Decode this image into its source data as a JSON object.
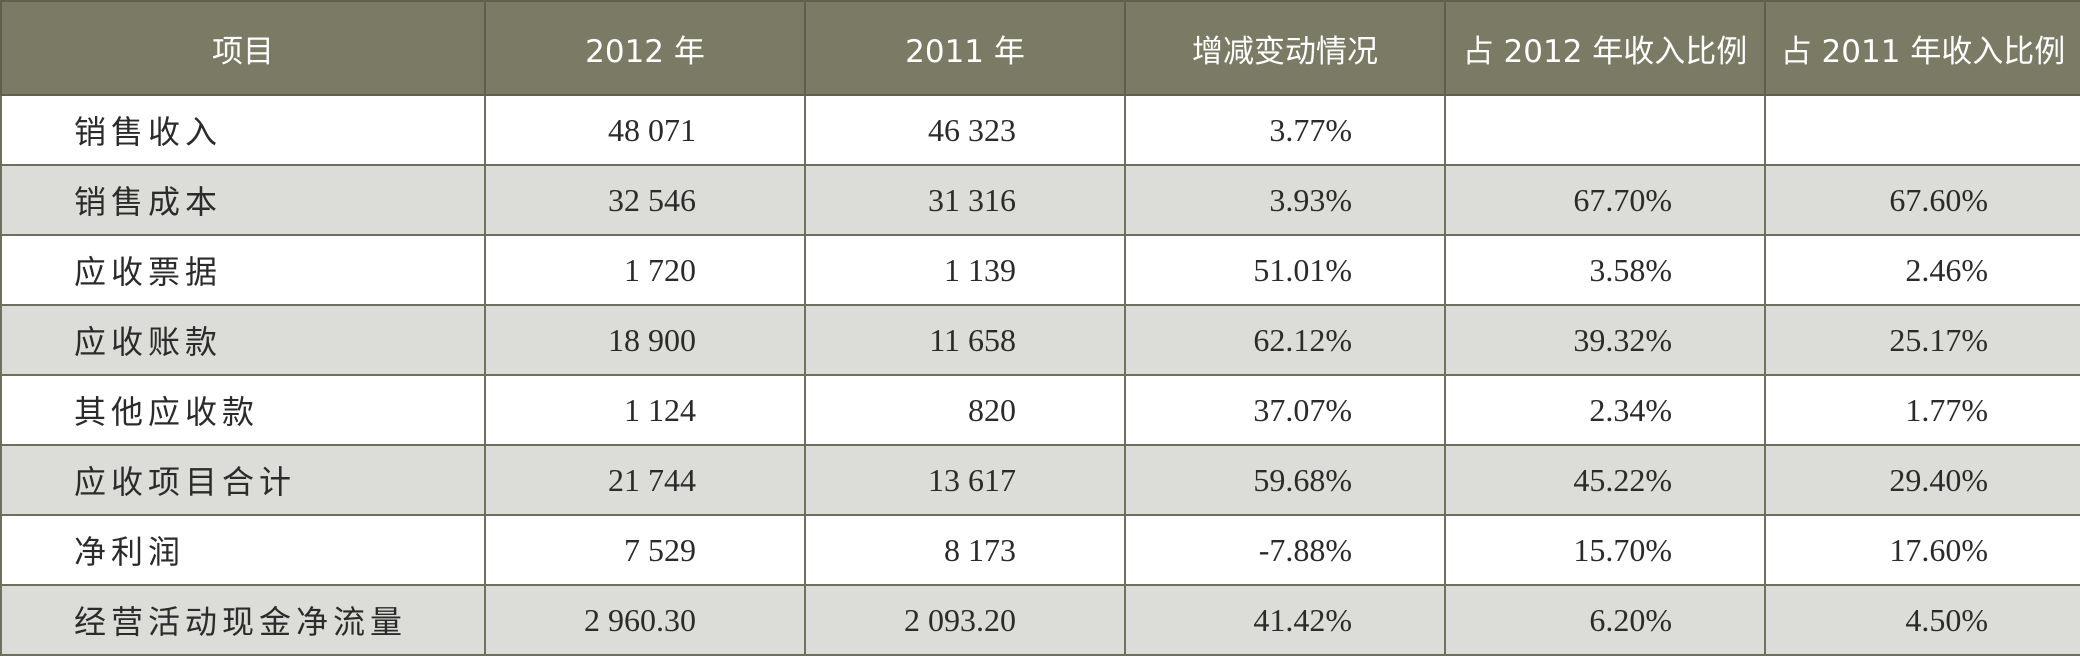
{
  "table": {
    "headers": [
      "项目",
      "2012 年",
      "2011 年",
      "增减变动情况",
      "占 2012 年收入比例",
      "占 2011 年收入比例"
    ],
    "rows": [
      {
        "item": "销售收入",
        "v2012": "48 071",
        "v2011": "46 323",
        "change": "3.77%",
        "ratio2012": "",
        "ratio2011": ""
      },
      {
        "item": "销售成本",
        "v2012": "32 546",
        "v2011": "31 316",
        "change": "3.93%",
        "ratio2012": "67.70%",
        "ratio2011": "67.60%"
      },
      {
        "item": "应收票据",
        "v2012": "1 720",
        "v2011": "1 139",
        "change": "51.01%",
        "ratio2012": "3.58%",
        "ratio2011": "2.46%"
      },
      {
        "item": "应收账款",
        "v2012": "18 900",
        "v2011": "11 658",
        "change": "62.12%",
        "ratio2012": "39.32%",
        "ratio2011": "25.17%"
      },
      {
        "item": "其他应收款",
        "v2012": "1 124",
        "v2011": "820",
        "change": "37.07%",
        "ratio2012": "2.34%",
        "ratio2011": "1.77%"
      },
      {
        "item": "应收项目合计",
        "v2012": "21 744",
        "v2011": "13 617",
        "change": "59.68%",
        "ratio2012": "45.22%",
        "ratio2011": "29.40%"
      },
      {
        "item": "净利润",
        "v2012": "7 529",
        "v2011": "8 173",
        "change": "-7.88%",
        "ratio2012": "15.70%",
        "ratio2011": "17.60%"
      },
      {
        "item": "经营活动现金净流量",
        "v2012": "2 960.30",
        "v2011": "2 093.20",
        "change": "41.42%",
        "ratio2012": "6.20%",
        "ratio2011": "4.50%"
      }
    ]
  },
  "colors": {
    "header_bg": "#7a7a65",
    "header_text": "#ffffff",
    "band_bg": "#dcdcd8",
    "border": "#6f6f5d"
  }
}
